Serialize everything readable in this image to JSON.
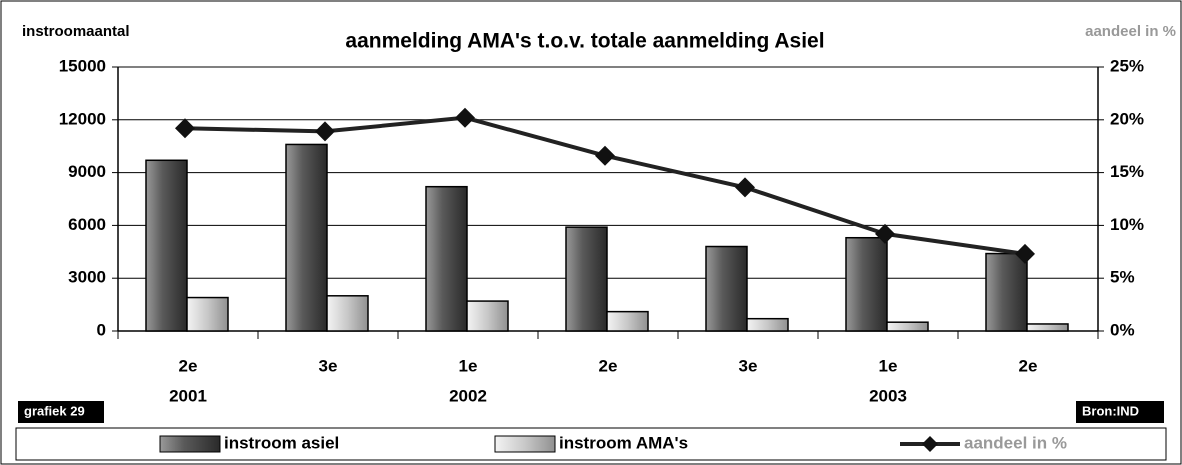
{
  "chart_data": {
    "type": "bar",
    "title": "aanmelding AMA's t.o.v. totale aanmelding Asiel",
    "y_label": "instroomaantal",
    "y2_label": "aandeel in %",
    "note_left": "grafiek 29",
    "note_right": "Bron:IND",
    "categories": [
      "2e",
      "3e",
      "1e",
      "2e",
      "3e",
      "1e",
      "2e"
    ],
    "years": [
      "2001",
      null,
      "2002",
      null,
      null,
      "2003",
      null
    ],
    "series": [
      {
        "name": "instroom asiel",
        "type": "bar",
        "color": "#555555",
        "values": [
          9700,
          10600,
          8200,
          5900,
          4800,
          5300,
          4400
        ]
      },
      {
        "name": "instroom AMA's",
        "type": "bar",
        "color": "#d8d8d8",
        "values": [
          1900,
          2000,
          1700,
          1100,
          700,
          500,
          400
        ]
      },
      {
        "name": "aandeel in %",
        "type": "line",
        "axis": "y2",
        "color": "#222222",
        "values": [
          19.2,
          18.9,
          20.2,
          16.6,
          13.6,
          9.2,
          7.3
        ]
      }
    ],
    "ylim": [
      0,
      15000
    ],
    "yticks": [
      0,
      3000,
      6000,
      9000,
      12000,
      15000
    ],
    "y2lim": [
      0,
      25
    ],
    "y2ticks": [
      {
        "value": 0,
        "label": "0%"
      },
      {
        "value": 5,
        "label": "5%"
      },
      {
        "value": 10,
        "label": "10%"
      },
      {
        "value": 15,
        "label": "15%"
      },
      {
        "value": 20,
        "label": "20%"
      },
      {
        "value": 25,
        "label": "25%"
      }
    ],
    "grid": true
  }
}
